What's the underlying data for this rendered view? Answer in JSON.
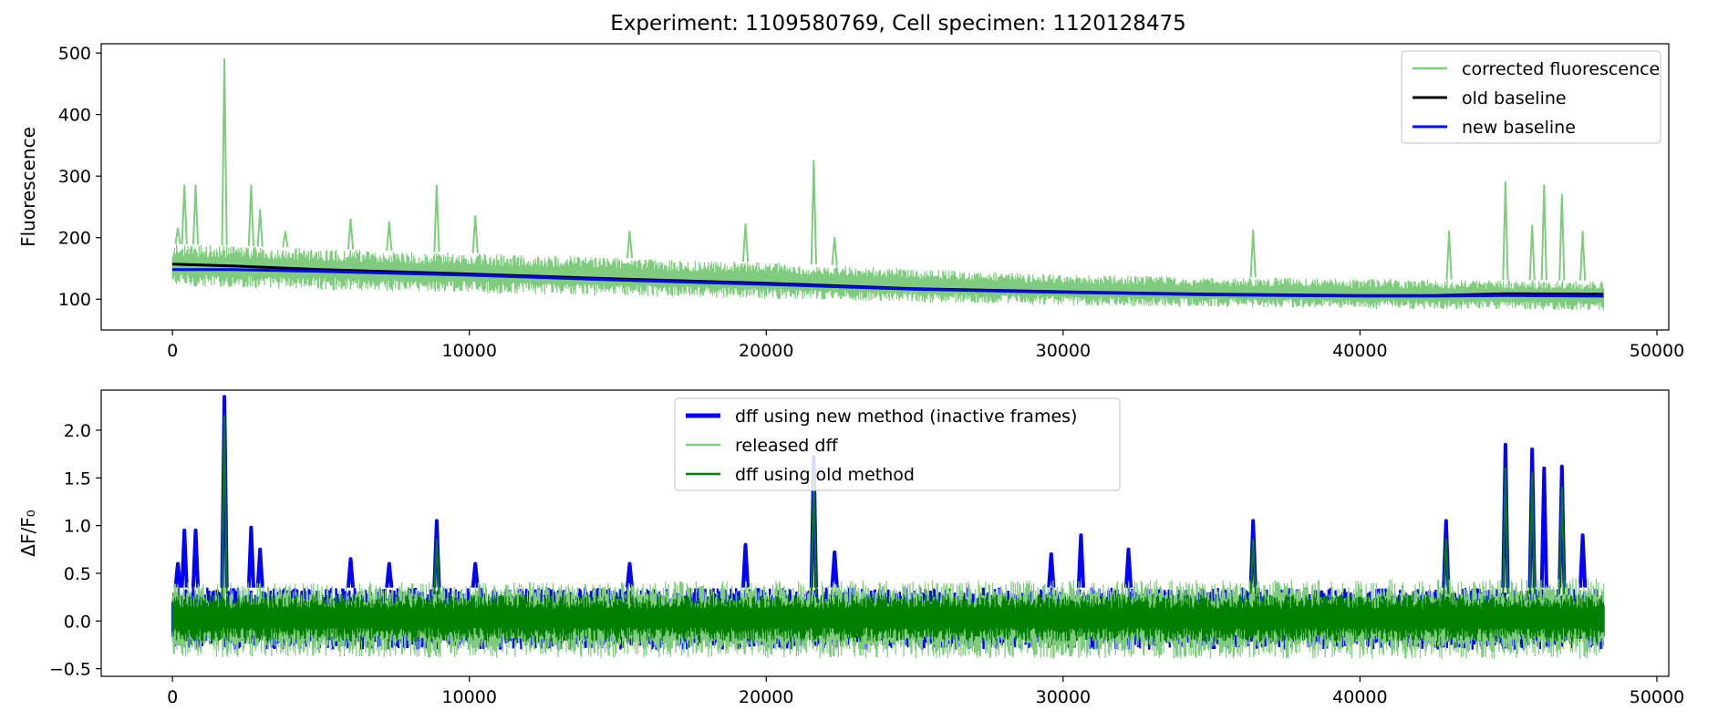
{
  "figure_title": "Experiment: 1109580769, Cell specimen: 1120128475",
  "chart_data": [
    {
      "type": "line",
      "title": "Experiment: 1109580769, Cell specimen: 1120128475",
      "xlabel": "",
      "ylabel": "Fluorescence",
      "xlim": [
        -2400,
        50400
      ],
      "ylim": [
        50,
        515
      ],
      "xticks": [
        0,
        10000,
        20000,
        30000,
        40000,
        50000
      ],
      "yticks": [
        100,
        200,
        300,
        400,
        500
      ],
      "grid": false,
      "legend": {
        "placement": "top-right",
        "entries": [
          "corrected fluorescence",
          "old baseline",
          "new baseline"
        ]
      },
      "series": [
        {
          "name": "corrected fluorescence",
          "color": "#7fcc7f",
          "kind": "noisy-band",
          "x_range": [
            0,
            48200
          ],
          "band_x": [
            0,
            10000,
            20000,
            30000,
            40000,
            48200
          ],
          "band_low": [
            120,
            110,
            100,
            90,
            84,
            82
          ],
          "band_high": [
            190,
            175,
            160,
            140,
            133,
            130
          ],
          "peaks": [
            {
              "x": 180,
              "y": 215
            },
            {
              "x": 400,
              "y": 285
            },
            {
              "x": 780,
              "y": 285
            },
            {
              "x": 1750,
              "y": 490
            },
            {
              "x": 2650,
              "y": 285
            },
            {
              "x": 2950,
              "y": 245
            },
            {
              "x": 3800,
              "y": 210
            },
            {
              "x": 6000,
              "y": 230
            },
            {
              "x": 7300,
              "y": 225
            },
            {
              "x": 8900,
              "y": 285
            },
            {
              "x": 10200,
              "y": 235
            },
            {
              "x": 15400,
              "y": 210
            },
            {
              "x": 19300,
              "y": 222
            },
            {
              "x": 21600,
              "y": 325
            },
            {
              "x": 22300,
              "y": 200
            },
            {
              "x": 36400,
              "y": 212
            },
            {
              "x": 43000,
              "y": 210
            },
            {
              "x": 44900,
              "y": 290
            },
            {
              "x": 45800,
              "y": 220
            },
            {
              "x": 46200,
              "y": 285
            },
            {
              "x": 46800,
              "y": 270
            },
            {
              "x": 47500,
              "y": 210
            }
          ]
        },
        {
          "name": "old baseline",
          "color": "#000000",
          "x": [
            0,
            2000,
            5000,
            10000,
            15000,
            20000,
            25000,
            30000,
            35000,
            40000,
            42500,
            45000,
            48200
          ],
          "y": [
            157,
            154,
            148,
            141,
            133,
            126,
            117,
            112,
            108,
            106,
            106,
            109,
            108
          ]
        },
        {
          "name": "new baseline",
          "color": "#0000ff",
          "x": [
            0,
            2000,
            5000,
            10000,
            15000,
            20000,
            25000,
            30000,
            35000,
            40000,
            42500,
            45000,
            48200
          ],
          "y": [
            148,
            148,
            145,
            139,
            131,
            124,
            116,
            111,
            107,
            105,
            105,
            106,
            105
          ]
        }
      ]
    },
    {
      "type": "line",
      "title": "",
      "xlabel": "",
      "ylabel": "ΔF/F₀",
      "xlim": [
        -2400,
        50400
      ],
      "ylim": [
        -0.58,
        2.42
      ],
      "xticks": [
        0,
        10000,
        20000,
        30000,
        40000,
        50000
      ],
      "yticks": [
        -0.5,
        0.0,
        0.5,
        1.0,
        1.5,
        2.0
      ],
      "ytick_labels": [
        "−0.5",
        "0.0",
        "0.5",
        "1.0",
        "1.5",
        "2.0"
      ],
      "grid": false,
      "legend": {
        "placement": "upper-center",
        "entries": [
          "dff using new method (inactive frames)",
          "released dff",
          "dff using old method"
        ]
      },
      "series": [
        {
          "name": "dff using new method (inactive frames)",
          "color": "#0000ff",
          "kind": "noisy-band",
          "x_range": [
            0,
            48200
          ],
          "band_x": [
            0,
            48200
          ],
          "band_low": [
            -0.3,
            -0.3
          ],
          "band_high": [
            0.35,
            0.35
          ],
          "peaks": [
            {
              "x": 180,
              "y": 0.6
            },
            {
              "x": 400,
              "y": 0.95
            },
            {
              "x": 780,
              "y": 0.95
            },
            {
              "x": 1750,
              "y": 2.35
            },
            {
              "x": 2650,
              "y": 0.98
            },
            {
              "x": 2950,
              "y": 0.75
            },
            {
              "x": 6000,
              "y": 0.65
            },
            {
              "x": 7300,
              "y": 0.6
            },
            {
              "x": 8900,
              "y": 1.05
            },
            {
              "x": 10200,
              "y": 0.6
            },
            {
              "x": 15400,
              "y": 0.6
            },
            {
              "x": 19300,
              "y": 0.8
            },
            {
              "x": 21600,
              "y": 1.72
            },
            {
              "x": 22300,
              "y": 0.72
            },
            {
              "x": 29600,
              "y": 0.7
            },
            {
              "x": 30600,
              "y": 0.9
            },
            {
              "x": 32200,
              "y": 0.75
            },
            {
              "x": 36400,
              "y": 1.05
            },
            {
              "x": 42900,
              "y": 1.05
            },
            {
              "x": 44900,
              "y": 1.85
            },
            {
              "x": 45800,
              "y": 1.8
            },
            {
              "x": 46200,
              "y": 1.6
            },
            {
              "x": 46800,
              "y": 1.62
            },
            {
              "x": 47500,
              "y": 0.9
            }
          ]
        },
        {
          "name": "released dff",
          "color": "#7fcc7f",
          "kind": "noisy-band",
          "x_range": [
            0,
            48200
          ],
          "band_x": [
            0,
            48200
          ],
          "band_low": [
            -0.38,
            -0.4
          ],
          "band_high": [
            0.4,
            0.45
          ],
          "peaks": []
        },
        {
          "name": "dff using old method",
          "color": "#008000",
          "kind": "noisy-band",
          "x_range": [
            0,
            48200
          ],
          "band_x": [
            0,
            48200
          ],
          "band_low": [
            -0.22,
            -0.22
          ],
          "band_high": [
            0.28,
            0.28
          ],
          "peaks": [
            {
              "x": 1750,
              "y": 2.15
            },
            {
              "x": 21600,
              "y": 1.55
            },
            {
              "x": 44900,
              "y": 1.6
            },
            {
              "x": 45800,
              "y": 1.55
            },
            {
              "x": 46800,
              "y": 1.4
            },
            {
              "x": 8900,
              "y": 0.85
            },
            {
              "x": 36400,
              "y": 0.85
            },
            {
              "x": 42900,
              "y": 0.85
            }
          ]
        }
      ]
    }
  ]
}
